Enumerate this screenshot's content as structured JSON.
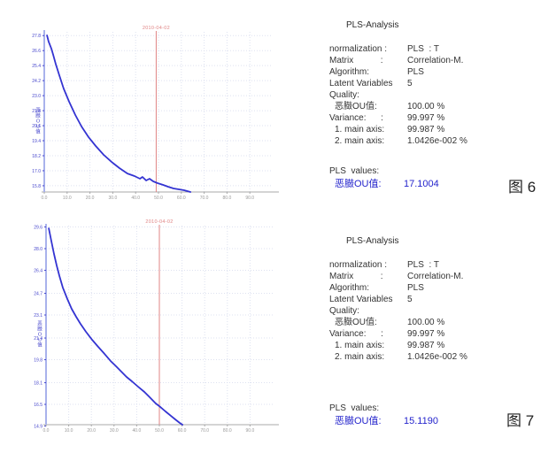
{
  "colors": {
    "curve_blue": "#3434d2",
    "axis_blue": "#a9b2ec",
    "tick_label_blue": "#4545cc",
    "cursor_red": "#e08484",
    "grid": "#dde1f0",
    "x_axis_grey": "#a8a8a8",
    "x_tick_label_grey": "#999999",
    "result_value_blue": "#2424cc",
    "text_black": "#333333"
  },
  "figure": {
    "panels": [
      {
        "title": "PLS-Analysis",
        "rows": [
          {
            "label": "normalization :",
            "value": "PLS  : T",
            "indent": false
          },
          {
            "label": "Matrix           :",
            "value": "Correlation-M.",
            "indent": false
          },
          {
            "label": "Algorithm:",
            "value": "PLS",
            "indent": false
          },
          {
            "label": "Latent Variables",
            "value": "5",
            "indent": false
          },
          {
            "label": "Quality:",
            "value": "",
            "indent": false
          },
          {
            "label": "恶臌OU值:",
            "value": "100.00 %",
            "indent": true
          },
          {
            "label": "Variance:      :",
            "value": "99.997 %",
            "indent": false
          },
          {
            "label": "1. main axis:",
            "value": "99.987 %",
            "indent": true
          },
          {
            "label": "2. main axis:",
            "value": "1.0426e-002 %",
            "indent": true
          }
        ],
        "result_heading": "PLS  values:",
        "result_label": "恶臌OU值:",
        "result_value": "17.1004",
        "caption": "图 6"
      },
      {
        "title": "PLS-Analysis",
        "rows": [
          {
            "label": "normalization :",
            "value": "PLS  : T",
            "indent": false
          },
          {
            "label": "Matrix           :",
            "value": "Correlation-M.",
            "indent": false
          },
          {
            "label": "Algorithm:",
            "value": "PLS",
            "indent": false
          },
          {
            "label": "Latent Variables",
            "value": "5",
            "indent": false
          },
          {
            "label": "Quality:",
            "value": "",
            "indent": false
          },
          {
            "label": "恶臌OU值:",
            "value": "100.00 %",
            "indent": true
          },
          {
            "label": "Variance:      :",
            "value": "99.997 %",
            "indent": false
          },
          {
            "label": "1. main axis:",
            "value": "99.987 %",
            "indent": true
          },
          {
            "label": "2. main axis:",
            "value": "1.0426e-002 %",
            "indent": true
          }
        ],
        "result_heading": "PLS  values:",
        "result_label": "恶臌OU值:",
        "result_value": "15.1190",
        "caption": "图 7"
      }
    ]
  },
  "chart_data": [
    {
      "type": "line",
      "title": "",
      "xlabel": "",
      "ylabel": "恶臌OU值",
      "xlim": [
        0,
        100
      ],
      "ylim": [
        15.3,
        28.1
      ],
      "grid": true,
      "x_ticks": [
        "0.0",
        "10.0",
        "20.0",
        "30.0",
        "40.0",
        "50.0",
        "60.0",
        "70.0",
        "80.0",
        "90.0"
      ],
      "y_ticks": [
        "27.8",
        "26.6",
        "25.4",
        "24.2",
        "23.0",
        "21.8",
        "20.6",
        "19.4",
        "18.2",
        "17.0",
        "15.8"
      ],
      "cursor_x": 49,
      "cursor_label": "2010-04-02",
      "series": [
        {
          "name": "恶臌OU值",
          "points": [
            [
              1.2,
              27.82
            ],
            [
              1.9,
              27.32
            ],
            [
              3.1,
              26.76
            ],
            [
              3.9,
              26.26
            ],
            [
              5.0,
              25.55
            ],
            [
              6.6,
              24.63
            ],
            [
              8.5,
              23.57
            ],
            [
              10.9,
              22.51
            ],
            [
              13.6,
              21.45
            ],
            [
              16.3,
              20.53
            ],
            [
              19.4,
              19.68
            ],
            [
              22.5,
              18.98
            ],
            [
              26.0,
              18.27
            ],
            [
              29.5,
              17.7
            ],
            [
              32.9,
              17.21
            ],
            [
              36.4,
              16.78
            ],
            [
              39.5,
              16.57
            ],
            [
              41.9,
              16.36
            ],
            [
              43.0,
              16.5
            ],
            [
              44.6,
              16.22
            ],
            [
              46.1,
              16.36
            ],
            [
              47.7,
              16.15
            ],
            [
              49.6,
              16.01
            ],
            [
              51.9,
              15.87
            ],
            [
              54.3,
              15.72
            ],
            [
              56.6,
              15.58
            ],
            [
              58.9,
              15.51
            ],
            [
              61.2,
              15.44
            ],
            [
              64.0,
              15.3
            ]
          ]
        }
      ]
    },
    {
      "type": "line",
      "title": "",
      "xlabel": "",
      "ylabel": "恶臌OU值",
      "xlim": [
        0,
        100
      ],
      "ylim": [
        15.0,
        29.7
      ],
      "grid": true,
      "x_ticks": [
        "0.0",
        "10.0",
        "20.0",
        "30.0",
        "40.0",
        "50.0",
        "60.0",
        "70.0",
        "80.0",
        "90.0"
      ],
      "y_ticks": [
        "29.6",
        "28.0",
        "26.4",
        "24.7",
        "23.1",
        "21.4",
        "19.8",
        "18.1",
        "16.5",
        "14.9"
      ],
      "cursor_x": 50,
      "cursor_label": "2010-04-02",
      "series": [
        {
          "name": "恶臌OU值",
          "points": [
            [
              1.2,
              29.5
            ],
            [
              2.3,
              28.59
            ],
            [
              3.5,
              27.61
            ],
            [
              4.7,
              26.76
            ],
            [
              5.9,
              25.98
            ],
            [
              7.4,
              25.13
            ],
            [
              9.4,
              24.28
            ],
            [
              11.3,
              23.56
            ],
            [
              13.3,
              22.97
            ],
            [
              15.2,
              22.45
            ],
            [
              17.6,
              21.86
            ],
            [
              20.3,
              21.27
            ],
            [
              23.0,
              20.75
            ],
            [
              25.8,
              20.23
            ],
            [
              28.5,
              19.7
            ],
            [
              30.9,
              19.31
            ],
            [
              33.2,
              18.92
            ],
            [
              35.5,
              18.53
            ],
            [
              37.9,
              18.2
            ],
            [
              40.6,
              17.81
            ],
            [
              43.4,
              17.42
            ],
            [
              45.7,
              17.03
            ],
            [
              48.4,
              16.57
            ],
            [
              50.4,
              16.31
            ],
            [
              52.7,
              15.98
            ],
            [
              55.1,
              15.65
            ],
            [
              57.0,
              15.39
            ],
            [
              59.0,
              15.13
            ],
            [
              60.2,
              15.0
            ]
          ]
        }
      ]
    }
  ]
}
